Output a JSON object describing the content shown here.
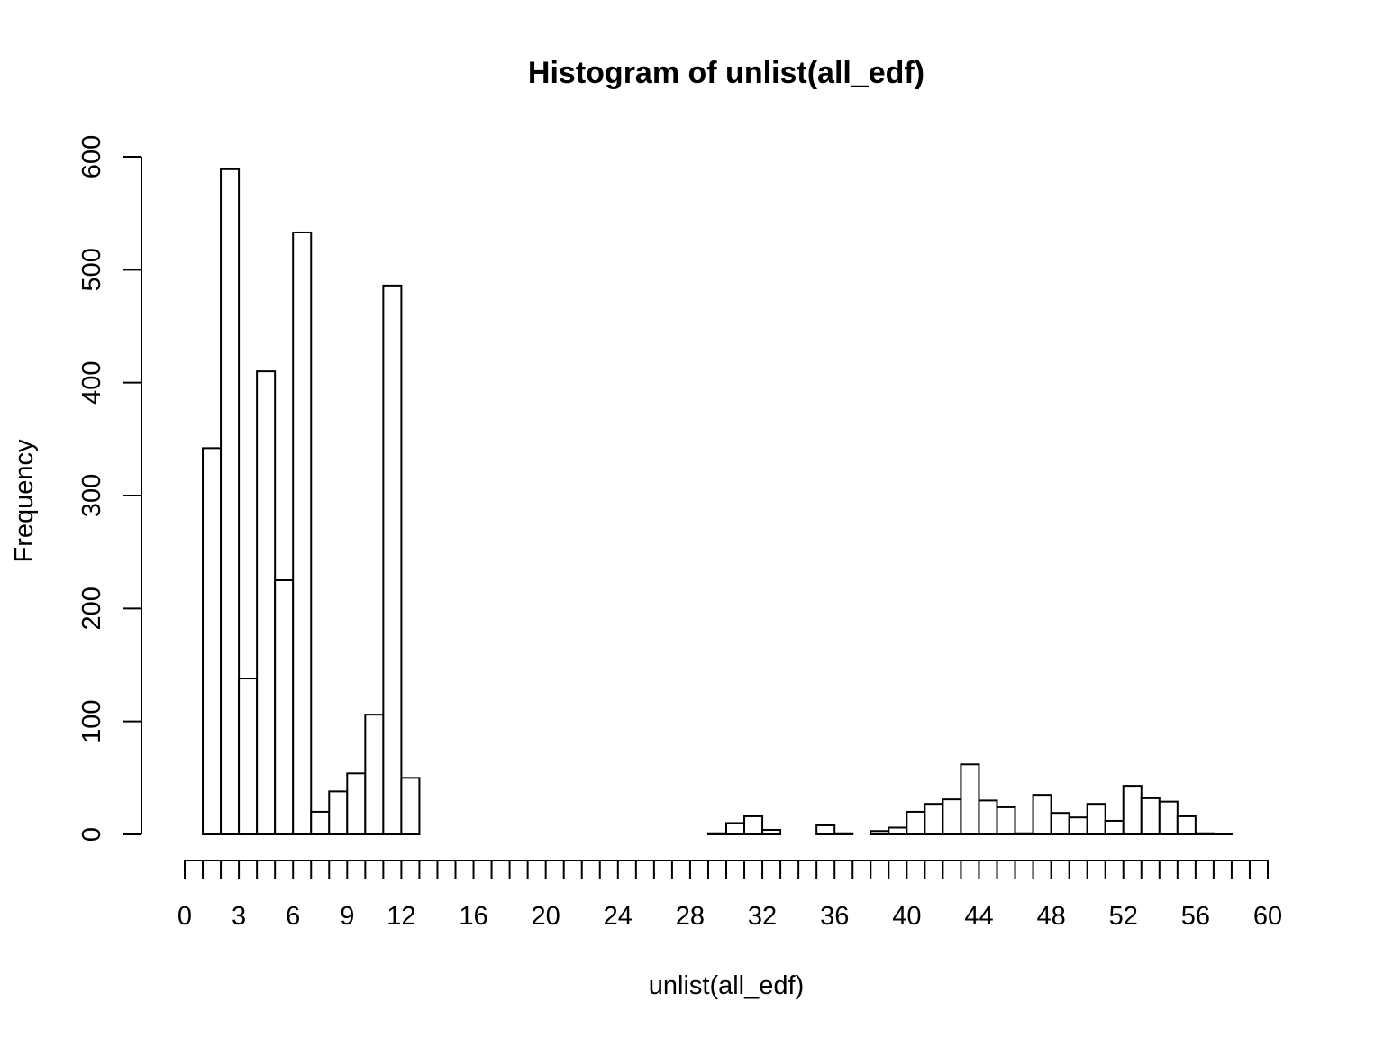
{
  "chart_data": {
    "type": "bar",
    "title": "Histogram of unlist(all_edf)",
    "xlabel": "unlist(all_edf)",
    "ylabel": "Frequency",
    "xlim": [
      0,
      60
    ],
    "ylim": [
      0,
      600
    ],
    "bin_width": 1,
    "bins_start": 0,
    "values": [
      0,
      342,
      589,
      138,
      410,
      225,
      533,
      20,
      38,
      54,
      106,
      486,
      50,
      0,
      0,
      0,
      0,
      0,
      0,
      0,
      0,
      0,
      0,
      0,
      0,
      0,
      0,
      0,
      0,
      1,
      10,
      16,
      4,
      0,
      0,
      8,
      1,
      0,
      3,
      6,
      20,
      27,
      31,
      62,
      30,
      24,
      1,
      35,
      19,
      15,
      27,
      12,
      43,
      32,
      29,
      16,
      1,
      0.5,
      0,
      0,
      0
    ],
    "x_ticks": [
      0,
      3,
      6,
      9,
      12,
      16,
      20,
      24,
      28,
      32,
      36,
      40,
      44,
      48,
      52,
      56,
      60
    ],
    "x_tick_labels": [
      "0",
      "3",
      "6",
      "9",
      "12",
      "16",
      "20",
      "24",
      "28",
      "32",
      "36",
      "40",
      "44",
      "48",
      "52",
      "56",
      "60"
    ],
    "y_ticks": [
      0,
      100,
      200,
      300,
      400,
      500,
      600
    ],
    "y_tick_labels": [
      "0",
      "100",
      "200",
      "300",
      "400",
      "500",
      "600"
    ],
    "grid": false
  }
}
